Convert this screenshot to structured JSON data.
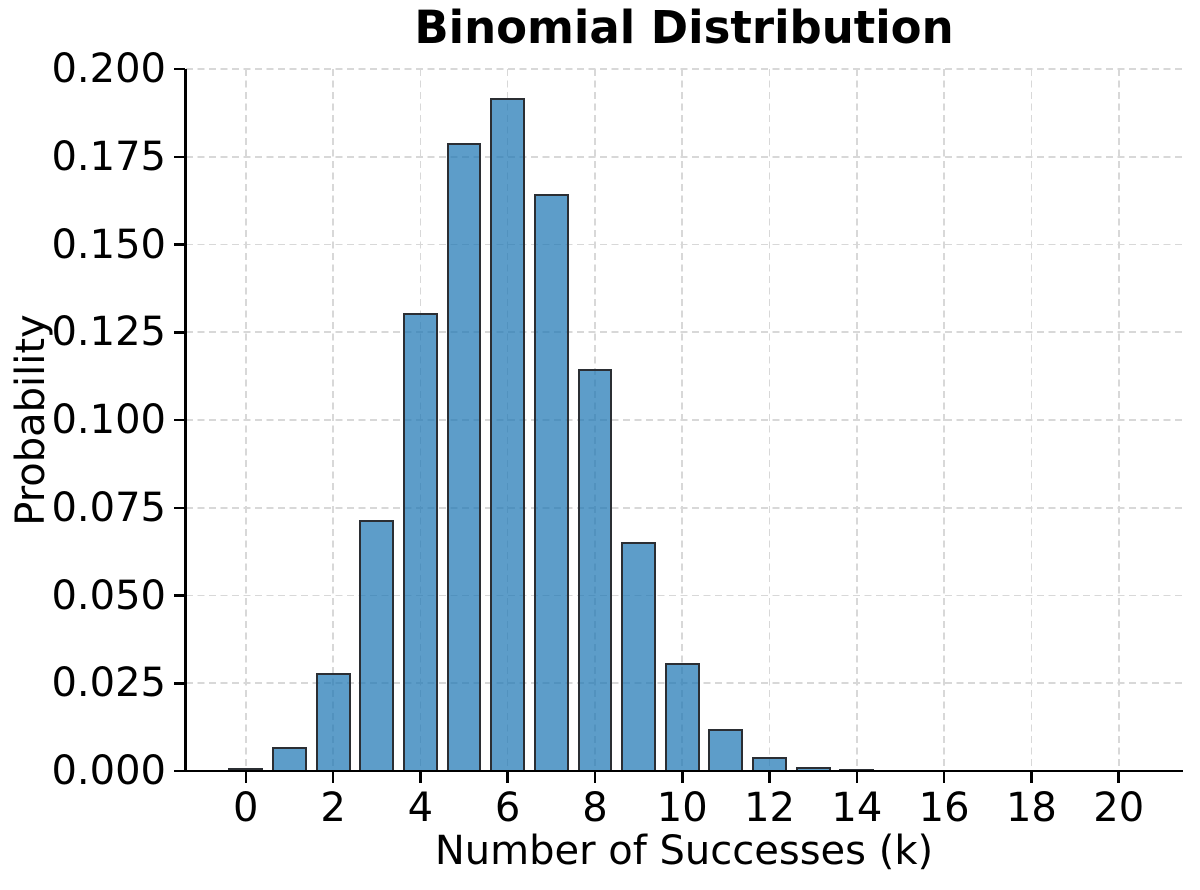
{
  "chart_data": {
    "type": "bar",
    "title": "Binomial Distribution",
    "xlabel": "Number of Successes (k)",
    "ylabel": "Probability",
    "x": [
      0,
      1,
      2,
      3,
      4,
      5,
      6,
      7,
      8,
      9,
      10,
      11,
      12,
      13,
      14,
      15,
      16,
      17,
      18,
      19,
      20
    ],
    "values": [
      0.000798,
      0.006839,
      0.027846,
      0.071604,
      0.130421,
      0.178863,
      0.191639,
      0.164262,
      0.114397,
      0.06537,
      0.030817,
      0.012007,
      0.003859,
      0.001018,
      0.000218,
      3.74e-05,
      5e-06,
      5e-07,
      4e-08,
      2e-09,
      3e-11
    ],
    "bar_width": 0.8,
    "xlim": [
      -1.37,
      21.45
    ],
    "ylim": [
      0,
      0.2
    ],
    "xticks": {
      "values": [
        0,
        2,
        4,
        6,
        8,
        10,
        12,
        14,
        16,
        18,
        20
      ],
      "labels": [
        "0",
        "2",
        "4",
        "6",
        "8",
        "10",
        "12",
        "14",
        "16",
        "18",
        "20"
      ]
    },
    "yticks": {
      "values": [
        0,
        0.025,
        0.05,
        0.075,
        0.1,
        0.125,
        0.15,
        0.175,
        0.2
      ],
      "labels": [
        "0.000",
        "0.025",
        "0.050",
        "0.075",
        "0.100",
        "0.125",
        "0.150",
        "0.175",
        "0.200"
      ]
    },
    "grid": {
      "visible": true,
      "style": "dashed",
      "axis": "both"
    },
    "legend": {
      "visible": false
    },
    "colors": {
      "bar_fill": "rgba(31,119,180,0.72)",
      "bar_edge": "#2b2e33",
      "grid": "#d8d8d8",
      "axis": "#000000",
      "text": "#000000",
      "background": "#ffffff"
    }
  }
}
